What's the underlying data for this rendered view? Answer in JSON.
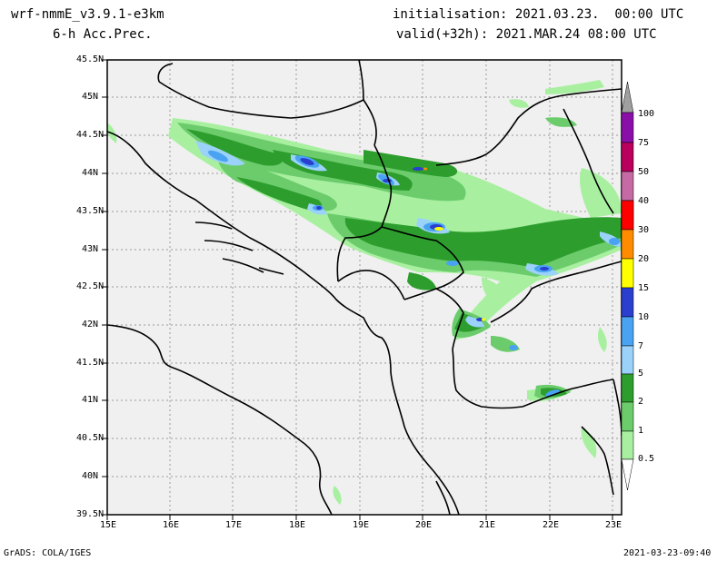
{
  "header": {
    "model": "wrf-nmmE_v3.9.1-e3km",
    "field": "6-h Acc.Prec.",
    "init": "initialisation: 2021.03.23.  00:00 UTC",
    "valid": "valid(+32h): 2021.MAR.24 08:00 UTC"
  },
  "footer": {
    "credit": "GrADS: COLA/IGES",
    "stamp": "2021-03-23-09:40"
  },
  "axes": {
    "lat_labels": [
      "45.5N",
      "45N",
      "44.5N",
      "44N",
      "43.5N",
      "43N",
      "42.5N",
      "42N",
      "41.5N",
      "41N",
      "40.5N",
      "40N",
      "39.5N"
    ],
    "lon_labels": [
      "15E",
      "16E",
      "17E",
      "18E",
      "19E",
      "20E",
      "21E",
      "22E",
      "23E"
    ]
  },
  "colors": {
    "land": "#f0f0f0",
    "c05": "#a8f0a0",
    "c1": "#6ccc6c",
    "c2": "#2d9e2d",
    "c5": "#9ad2fa",
    "c7": "#4aa2f2",
    "c10": "#2a3ed0",
    "c15": "#ffff00",
    "c20": "#ff8c00",
    "c30": "#ff0000",
    "c40": "#d48cd0",
    "c50": "#c66aa4",
    "c75": "#b8005c",
    "c100": "#8a0fa8",
    "over": "#a0a0a0"
  },
  "legend": {
    "labels": [
      "100",
      "75",
      "50",
      "40",
      "30",
      "20",
      "15",
      "10",
      "7",
      "5",
      "2",
      "1",
      "0.5"
    ]
  }
}
